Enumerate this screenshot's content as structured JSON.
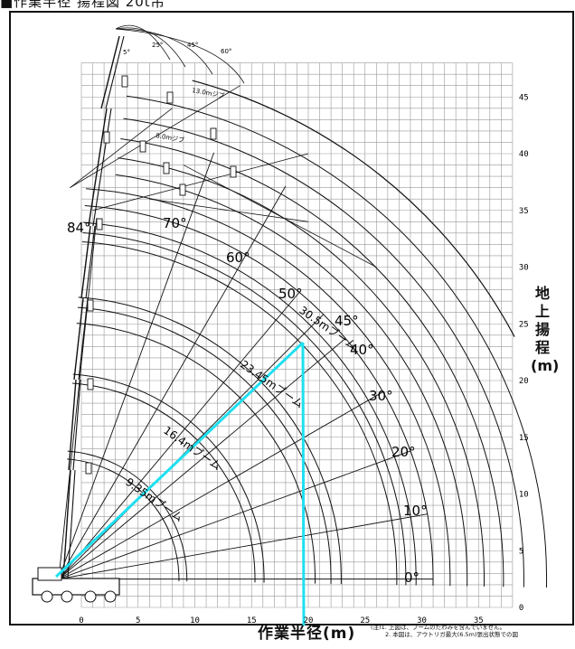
{
  "header": {
    "title": "■作業半径 揚程図 20t吊"
  },
  "axes": {
    "x_title": "作業半径(m)",
    "y_title_lines": [
      "地",
      "上",
      "揚",
      "程",
      "(m)"
    ],
    "x_ticks": [
      "0",
      "5",
      "10",
      "15",
      "20",
      "25",
      "30",
      "35"
    ],
    "y_ticks": [
      "5",
      "10",
      "15",
      "20",
      "25",
      "30",
      "35",
      "40",
      "45"
    ],
    "origin_label": "0"
  },
  "booms": [
    "9.35mブーム",
    "16.4mブーム",
    "23.45mブーム",
    "30.5mブーム"
  ],
  "jibs": [
    "13.0mジブ",
    "8.0mジブ"
  ],
  "top_angles": [
    "5°",
    "25°",
    "45°",
    "60°"
  ],
  "boom_angles": [
    "84°",
    "70°",
    "60°",
    "50°",
    "45°",
    "40°",
    "30°",
    "20°",
    "10°",
    "0°"
  ],
  "notes": [
    "(注)1. 上図は、ブームのたわみを含んでいません。",
    "2. 本図は、アウトリガ最大(6.5m)張出状態での図"
  ],
  "colors": {
    "highlight": "#1ee0f0",
    "line": "#111111",
    "grid": "#999999"
  }
}
